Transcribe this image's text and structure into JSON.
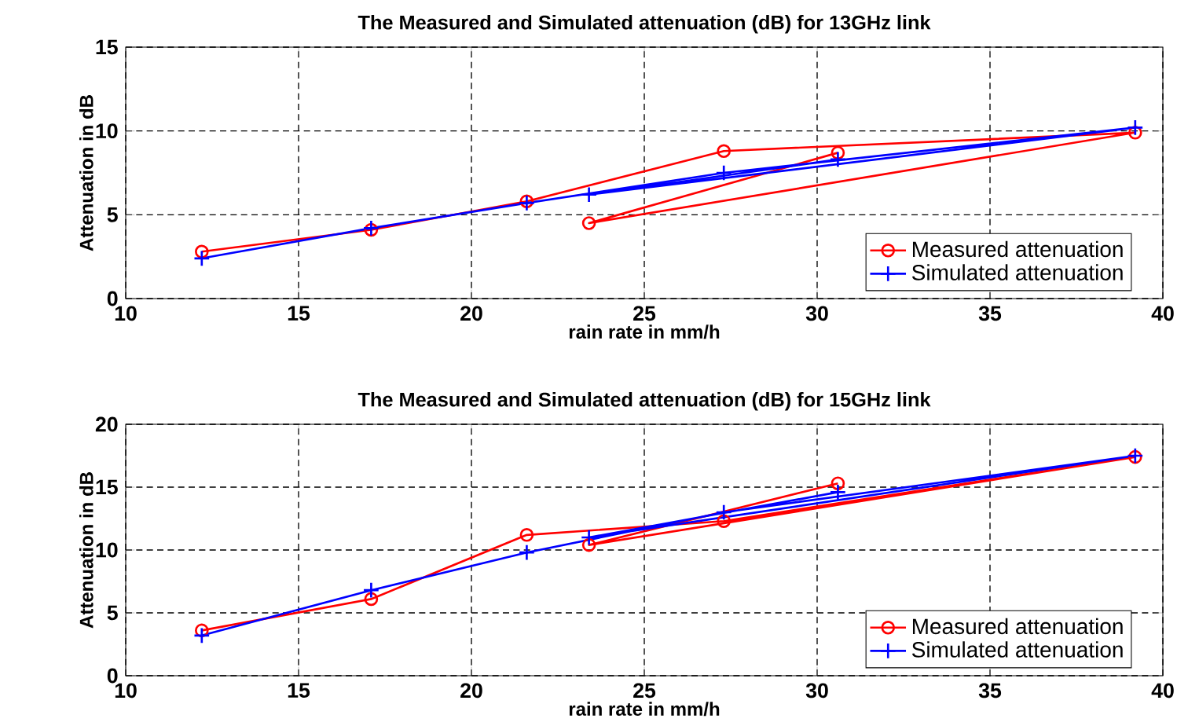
{
  "chart_data": [
    {
      "type": "line",
      "title": "The Measured and Simulated attenuation (dB) for 13GHz link",
      "xlabel": "rain rate in mm/h",
      "ylabel": "Attenuation in dB",
      "x": [
        12.2,
        17.1,
        21.6,
        27.3,
        39.2,
        23.4,
        30.6
      ],
      "series": [
        {
          "name": "Measured attenuation",
          "color": "#ff0000",
          "marker": "circle",
          "values": [
            2.8,
            4.1,
            5.8,
            8.8,
            9.9,
            4.5,
            8.7
          ]
        },
        {
          "name": "Simulated attenuation",
          "color": "#0000ff",
          "marker": "cross",
          "values": [
            2.4,
            4.2,
            5.7,
            7.5,
            10.2,
            6.2,
            8.3
          ]
        }
      ],
      "xlim": [
        10,
        40
      ],
      "ylim": [
        0,
        15
      ],
      "xticks": [
        10,
        15,
        20,
        25,
        30,
        35,
        40
      ],
      "yticks": [
        0,
        5,
        10,
        15
      ],
      "grid": true,
      "legend": "bottom right"
    },
    {
      "type": "line",
      "title": "The Measured and Simulated attenuation (dB) for 15GHz link",
      "xlabel": "rain rate in mm/h",
      "ylabel": "Attenuation in dB",
      "x": [
        12.2,
        17.1,
        21.6,
        27.3,
        39.2,
        23.4,
        30.6
      ],
      "series": [
        {
          "name": "Measured attenuation",
          "color": "#ff0000",
          "marker": "circle",
          "values": [
            3.6,
            6.1,
            11.2,
            12.3,
            17.4,
            10.4,
            15.3
          ]
        },
        {
          "name": "Simulated attenuation",
          "color": "#0000ff",
          "marker": "cross",
          "values": [
            3.2,
            6.8,
            9.8,
            13.0,
            17.5,
            11.0,
            14.6
          ]
        }
      ],
      "xlim": [
        10,
        40
      ],
      "ylim": [
        0,
        20
      ],
      "xticks": [
        10,
        15,
        20,
        25,
        30,
        35,
        40
      ],
      "yticks": [
        0,
        5,
        10,
        15,
        20
      ],
      "grid": true,
      "legend": "bottom right"
    }
  ]
}
